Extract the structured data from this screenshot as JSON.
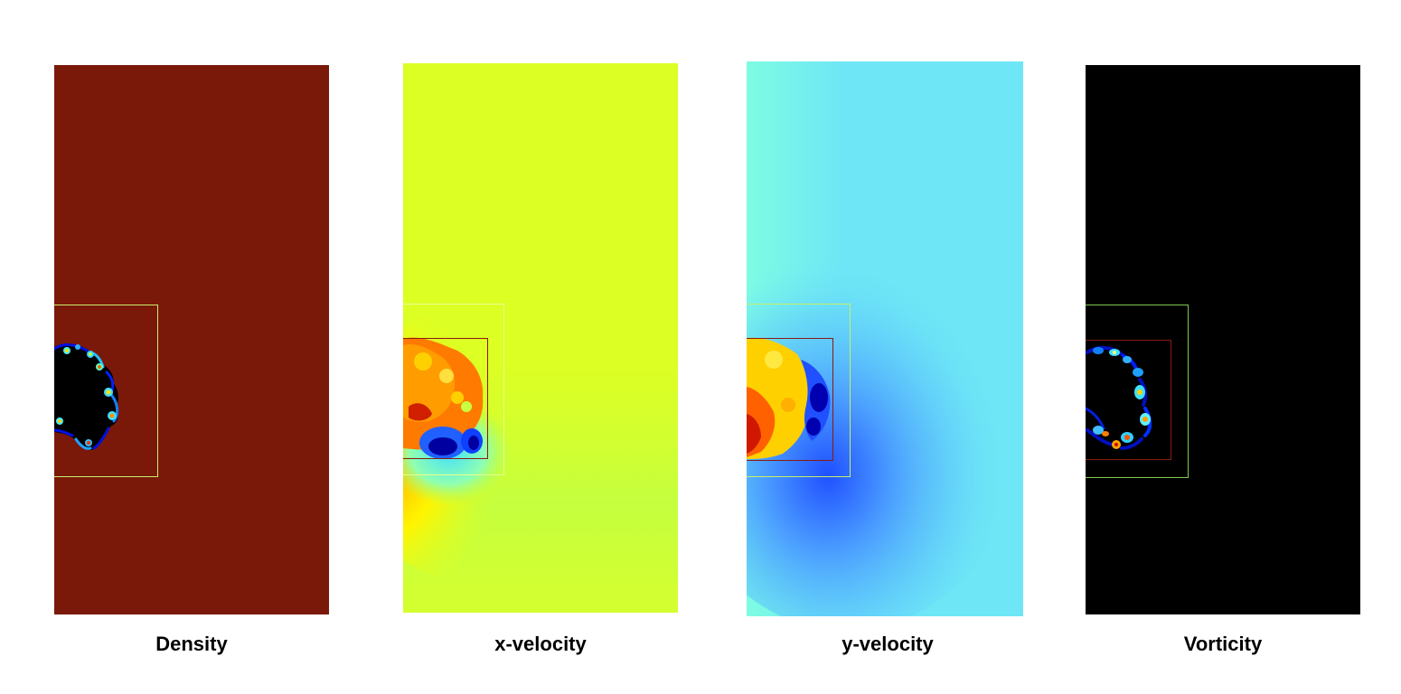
{
  "panels": [
    {
      "id": "density",
      "label": "Density",
      "colormap": "jet",
      "background": "#7a1909"
    },
    {
      "id": "x-velocity",
      "label": "x-velocity",
      "colormap": "jet",
      "background": "#dcff24"
    },
    {
      "id": "y-velocity",
      "label": "y-velocity",
      "colormap": "jet",
      "background": "#6ee6f6"
    },
    {
      "id": "vorticity",
      "label": "Vorticity",
      "colormap": "jet",
      "background": "#000000"
    }
  ],
  "colors": {
    "outer_refinement_box": "#c6f06a",
    "inner_refinement_box": "#8a1a10"
  }
}
